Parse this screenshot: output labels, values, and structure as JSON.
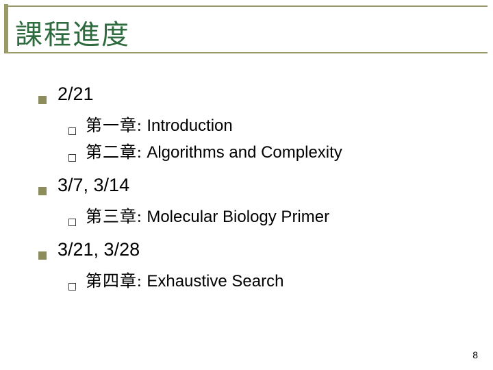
{
  "title": "課程進度",
  "title_color": "#2e6b3f",
  "rule_color": "#9a9a68",
  "bullet_fill": "#8c8c5c",
  "bullet_border": "#3a3a3a",
  "page_number": "8",
  "sections": {
    "s0": {
      "date": "2/21",
      "items": {
        "i0": {
          "cjk": "第一章:",
          "en": " Introduction"
        },
        "i1": {
          "cjk": "第二章:",
          "en": " Algorithms and Complexity"
        }
      }
    },
    "s1": {
      "date": "3/7, 3/14",
      "items": {
        "i0": {
          "cjk": "第三章:",
          "en": " Molecular Biology Primer"
        }
      }
    },
    "s2": {
      "date": "3/21, 3/28",
      "items": {
        "i0": {
          "cjk": "第四章:",
          "en": " Exhaustive Search"
        }
      }
    }
  }
}
